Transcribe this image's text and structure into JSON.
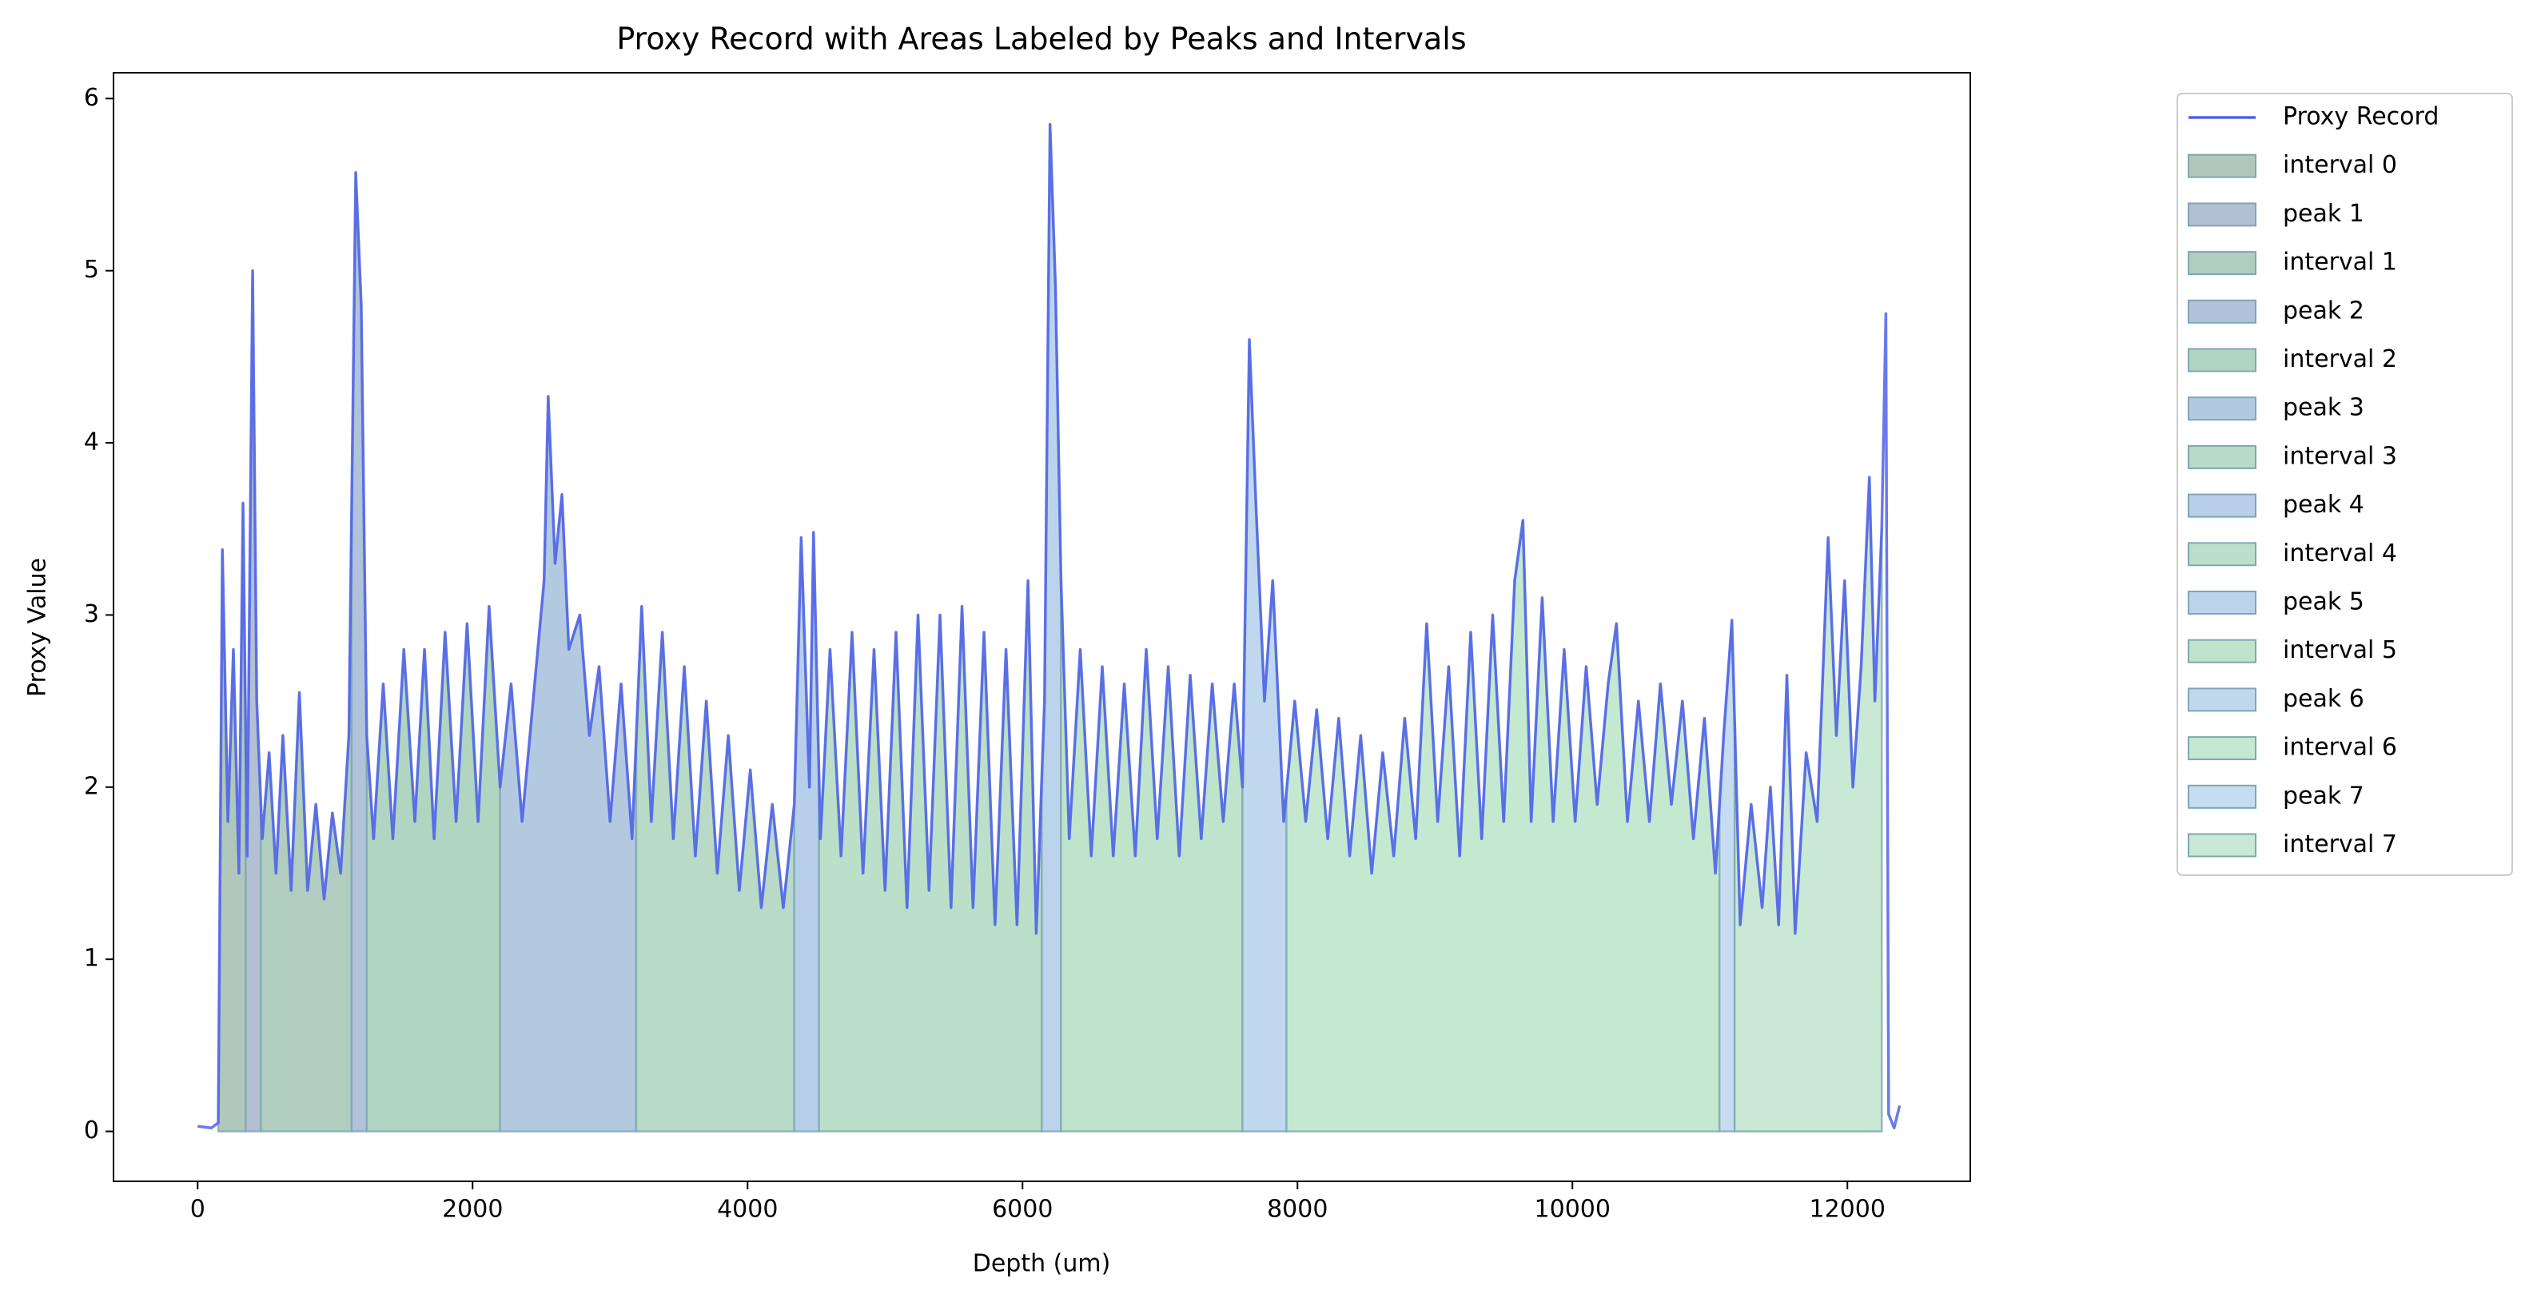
{
  "chart_data": {
    "type": "line",
    "title": "Proxy Record with Areas Labeled by Peaks and Intervals",
    "xlabel": "Depth (um)",
    "ylabel": "Proxy Value",
    "xlim": [
      -612,
      12894
    ],
    "ylim": [
      -0.29,
      6.15
    ],
    "xticks": [
      0,
      2000,
      4000,
      6000,
      8000,
      10000,
      12000
    ],
    "yticks": [
      0,
      1,
      2,
      3,
      4,
      5,
      6
    ],
    "legend": "outside-upper-right",
    "x": [
      0,
      100,
      150,
      180,
      220,
      260,
      300,
      330,
      360,
      400,
      430,
      470,
      520,
      570,
      620,
      680,
      740,
      800,
      860,
      920,
      980,
      1040,
      1100,
      1150,
      1190,
      1230,
      1280,
      1350,
      1420,
      1500,
      1580,
      1650,
      1720,
      1800,
      1880,
      1960,
      2040,
      2120,
      2200,
      2280,
      2360,
      2440,
      2520,
      2550,
      2600,
      2650,
      2700,
      2780,
      2850,
      2920,
      3000,
      3080,
      3160,
      3230,
      3300,
      3380,
      3460,
      3540,
      3620,
      3700,
      3780,
      3860,
      3940,
      4020,
      4100,
      4180,
      4260,
      4340,
      4390,
      4450,
      4480,
      4530,
      4600,
      4680,
      4760,
      4840,
      4920,
      5000,
      5080,
      5160,
      5240,
      5320,
      5400,
      5480,
      5560,
      5640,
      5720,
      5800,
      5880,
      5960,
      6040,
      6100,
      6160,
      6200,
      6240,
      6280,
      6340,
      6420,
      6500,
      6580,
      6660,
      6740,
      6820,
      6900,
      6980,
      7060,
      7140,
      7220,
      7300,
      7380,
      7460,
      7540,
      7600,
      7650,
      7700,
      7760,
      7820,
      7900,
      7980,
      8060,
      8140,
      8220,
      8300,
      8380,
      8460,
      8540,
      8620,
      8700,
      8780,
      8860,
      8940,
      9020,
      9100,
      9180,
      9260,
      9340,
      9420,
      9500,
      9580,
      9640,
      9700,
      9780,
      9860,
      9940,
      10020,
      10100,
      10180,
      10260,
      10320,
      10400,
      10480,
      10560,
      10640,
      10720,
      10800,
      10880,
      10960,
      11040,
      11100,
      11160,
      11220,
      11300,
      11380,
      11440,
      11500,
      11560,
      11620,
      11700,
      11780,
      11860,
      11920,
      11980,
      12040,
      12100,
      12160,
      12200,
      12250,
      12280,
      12300,
      12340,
      12380
    ],
    "series": [
      {
        "name": "Proxy Record",
        "color": "#4f62ea",
        "values": [
          0.03,
          0.02,
          0.05,
          3.38,
          1.8,
          2.8,
          1.5,
          3.65,
          1.6,
          5.0,
          2.5,
          1.7,
          2.2,
          1.5,
          2.3,
          1.4,
          2.55,
          1.4,
          1.9,
          1.35,
          1.85,
          1.5,
          2.3,
          5.57,
          4.8,
          2.3,
          1.7,
          2.6,
          1.7,
          2.8,
          1.8,
          2.8,
          1.7,
          2.9,
          1.8,
          2.95,
          1.8,
          3.05,
          2.0,
          2.6,
          1.8,
          2.5,
          3.2,
          4.27,
          3.3,
          3.7,
          2.8,
          3.0,
          2.3,
          2.7,
          1.8,
          2.6,
          1.7,
          3.05,
          1.8,
          2.9,
          1.7,
          2.7,
          1.6,
          2.5,
          1.5,
          2.3,
          1.4,
          2.1,
          1.3,
          1.9,
          1.3,
          1.9,
          3.45,
          2.0,
          3.48,
          1.7,
          2.8,
          1.6,
          2.9,
          1.5,
          2.8,
          1.4,
          2.9,
          1.3,
          3.0,
          1.4,
          3.0,
          1.3,
          3.05,
          1.3,
          2.9,
          1.2,
          2.8,
          1.2,
          3.2,
          1.15,
          2.5,
          5.85,
          4.9,
          3.2,
          1.7,
          2.8,
          1.6,
          2.7,
          1.6,
          2.6,
          1.6,
          2.8,
          1.7,
          2.7,
          1.6,
          2.65,
          1.7,
          2.6,
          1.8,
          2.6,
          2.0,
          4.6,
          3.6,
          2.5,
          3.2,
          1.8,
          2.5,
          1.8,
          2.45,
          1.7,
          2.4,
          1.6,
          2.3,
          1.5,
          2.2,
          1.6,
          2.4,
          1.7,
          2.95,
          1.8,
          2.7,
          1.6,
          2.9,
          1.7,
          3.0,
          1.8,
          3.2,
          3.55,
          1.8,
          3.1,
          1.8,
          2.8,
          1.8,
          2.7,
          1.9,
          2.6,
          2.95,
          1.8,
          2.5,
          1.8,
          2.6,
          1.9,
          2.5,
          1.7,
          2.4,
          1.5,
          2.3,
          2.97,
          1.2,
          1.9,
          1.3,
          2.0,
          1.2,
          2.65,
          1.15,
          2.2,
          1.8,
          3.45,
          2.3,
          3.2,
          2.0,
          2.7,
          3.8,
          2.5,
          3.5,
          4.75,
          0.1,
          0.02,
          0.15
        ]
      }
    ],
    "areas": [
      {
        "name": "interval 0",
        "color": "#b0c7bb",
        "xrange": [
          150,
          350
        ]
      },
      {
        "name": "peak 1",
        "color": "#b3bfd3",
        "xrange": [
          350,
          460
        ]
      },
      {
        "name": "interval 1",
        "color": "#b0cdbf",
        "xrange": [
          460,
          1120
        ]
      },
      {
        "name": "peak 2",
        "color": "#b0c3da",
        "xrange": [
          1120,
          1230
        ]
      },
      {
        "name": "interval 2",
        "color": "#b0d5c0",
        "xrange": [
          1230,
          2200
        ]
      },
      {
        "name": "peak 3",
        "color": "#b3c9e0",
        "xrange": [
          2200,
          3190
        ]
      },
      {
        "name": "interval 3",
        "color": "#b8dac6",
        "xrange": [
          3190,
          4340
        ]
      },
      {
        "name": "peak 4",
        "color": "#b7cfe8",
        "xrange": [
          4340,
          4520
        ]
      },
      {
        "name": "interval 4",
        "color": "#bbdfc8",
        "xrange": [
          4520,
          6140
        ]
      },
      {
        "name": "peak 5",
        "color": "#bbd4ec",
        "xrange": [
          6140,
          6280
        ]
      },
      {
        "name": "interval 5",
        "color": "#c0e3cc",
        "xrange": [
          6280,
          7600
        ]
      },
      {
        "name": "peak 6",
        "color": "#c0d8ee",
        "xrange": [
          7600,
          7920
        ]
      },
      {
        "name": "interval 6",
        "color": "#c5e8d1",
        "xrange": [
          7920,
          11070
        ]
      },
      {
        "name": "peak 7",
        "color": "#c6ddf1",
        "xrange": [
          11070,
          11180
        ]
      },
      {
        "name": "interval 7",
        "color": "#cae9d5",
        "xrange": [
          11180,
          12250
        ]
      }
    ]
  }
}
